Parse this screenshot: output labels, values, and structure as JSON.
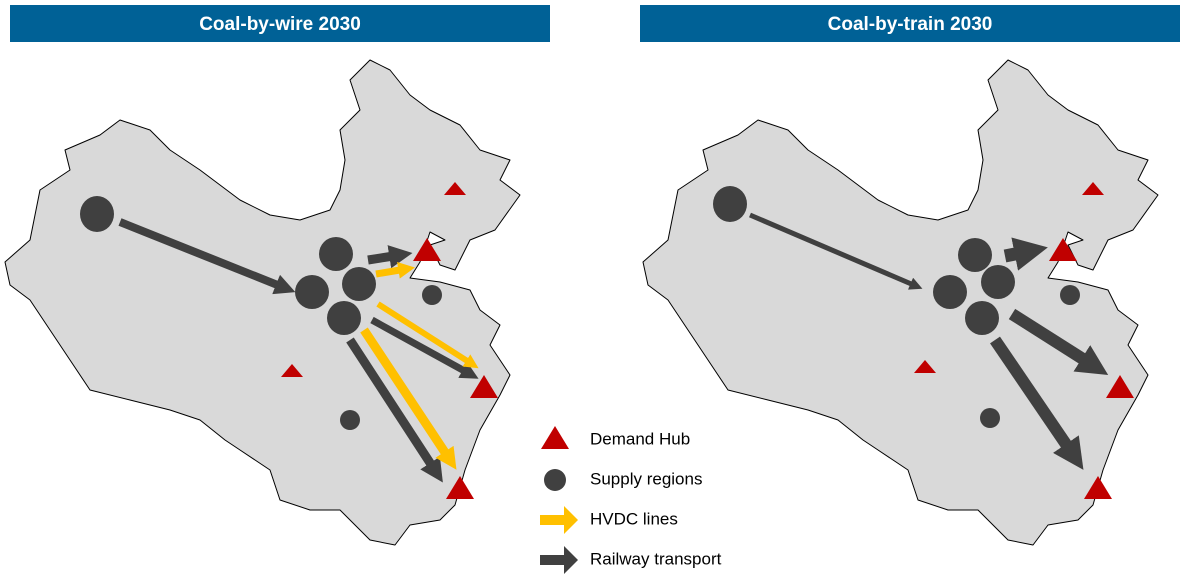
{
  "panels": [
    {
      "title": "Coal-by-wire 2030"
    },
    {
      "title": "Coal-by-train 2030"
    }
  ],
  "legend": [
    {
      "label": "Demand Hub"
    },
    {
      "label": "Supply regions"
    },
    {
      "label": "HVDC lines"
    },
    {
      "label": "Railway transport"
    }
  ]
}
